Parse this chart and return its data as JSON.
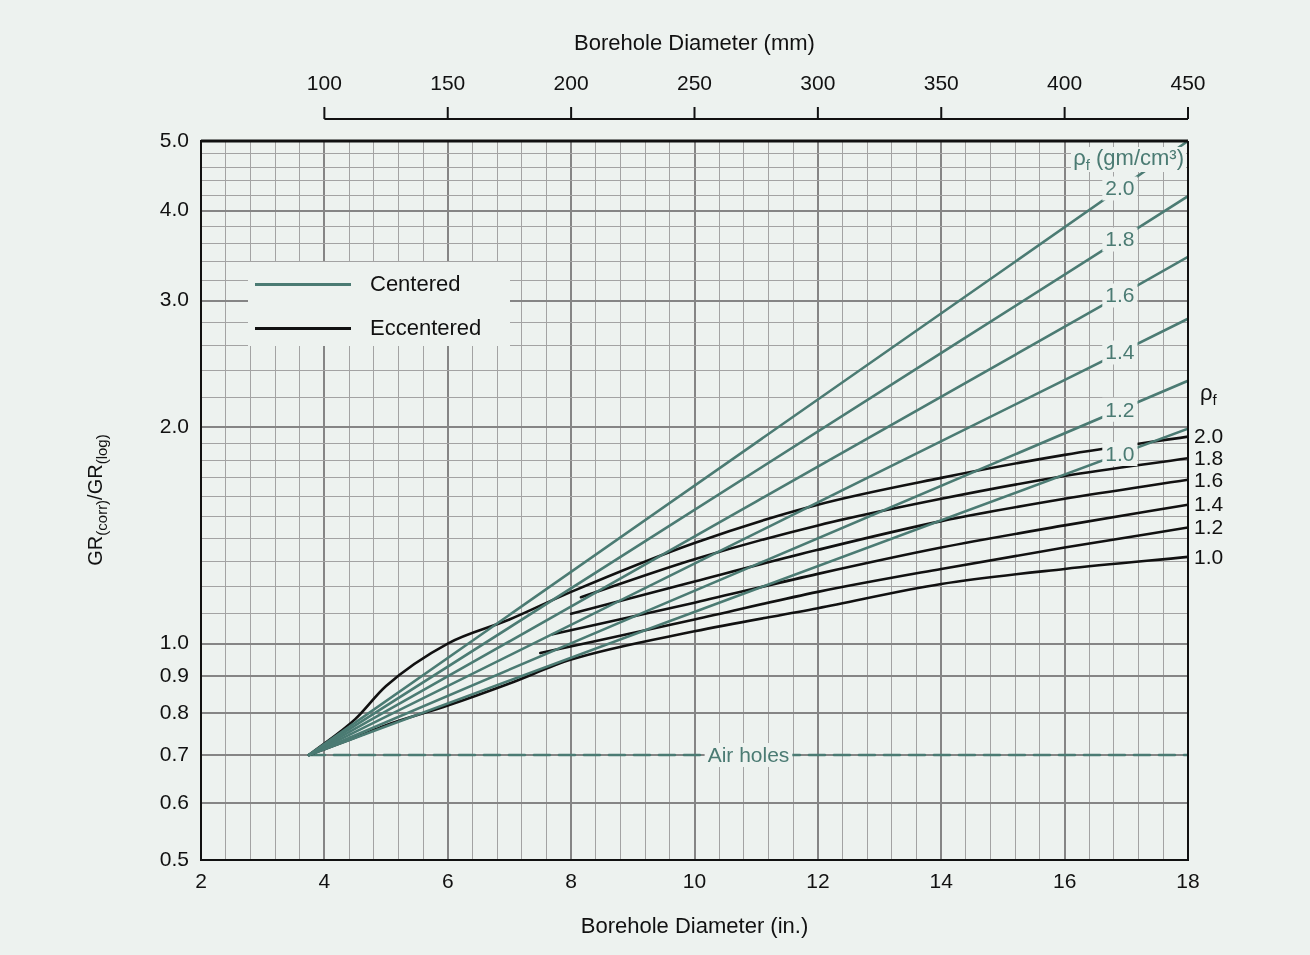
{
  "chart_data": {
    "type": "line",
    "xlabel": "Borehole Diameter (in.)",
    "x2label": "Borehole Diameter (mm)",
    "ylabel": "GR$_{(corr)}$/GR$_{(log)}$",
    "xlim": [
      2,
      18
    ],
    "xticks": [
      2,
      {
        "value": 2.4,
        "label": null
      },
      {
        "value": 2.8,
        "label": null
      },
      {
        "value": 3.2,
        "label": null
      },
      {
        "value": 3.6,
        "label": null
      },
      4,
      {
        "value": 4.4,
        "label": null
      },
      {
        "value": 4.8,
        "label": null
      },
      {
        "value": 5.2,
        "label": null
      },
      {
        "value": 5.6,
        "label": null
      },
      6,
      {
        "value": 6.4,
        "label": null
      },
      {
        "value": 6.8,
        "label": null
      },
      {
        "value": 7.2,
        "label": null
      },
      {
        "value": 7.6,
        "label": null
      },
      8,
      {
        "value": 8.4,
        "label": null
      },
      {
        "value": 8.8,
        "label": null
      },
      {
        "value": 9.2,
        "label": null
      },
      {
        "value": 9.6,
        "label": null
      },
      10,
      {
        "value": 10.4,
        "label": null
      },
      {
        "value": 10.8,
        "label": null
      },
      {
        "value": 11.2,
        "label": null
      },
      {
        "value": 11.6,
        "label": null
      },
      12,
      {
        "value": 12.4,
        "label": null
      },
      {
        "value": 12.8,
        "label": null
      },
      {
        "value": 13.2,
        "label": null
      },
      {
        "value": 13.6,
        "label": null
      },
      14,
      {
        "value": 14.4,
        "label": null
      },
      {
        "value": 14.8,
        "label": null
      },
      {
        "value": 15.2,
        "label": null
      },
      {
        "value": 15.6,
        "label": null
      },
      16,
      {
        "value": 16.4,
        "label": null
      },
      {
        "value": 16.8,
        "label": null
      },
      {
        "value": 17.2,
        "label": null
      },
      {
        "value": 17.6,
        "label": null
      },
      18
    ],
    "x2lim": [
      50,
      450
    ],
    "x2ticks": [
      100,
      150,
      200,
      250,
      300,
      350,
      400,
      450
    ],
    "ylim": [
      0.5,
      5
    ],
    "log": "y",
    "yticks": [
      0.5,
      0.6,
      0.7,
      0.8,
      0.9,
      {
        "value": 1,
        "label": "1.0"
      },
      {
        "value": 1.1,
        "label": null
      },
      {
        "value": 1.2,
        "label": null
      },
      {
        "value": 1.3,
        "label": null
      },
      {
        "value": 1.4,
        "label": null
      },
      {
        "value": 1.5,
        "label": null
      },
      {
        "value": 1.6,
        "label": null
      },
      {
        "value": 1.7,
        "label": null
      },
      {
        "value": 1.8,
        "label": null
      },
      {
        "value": 1.9,
        "label": null
      },
      {
        "value": 2,
        "label": "2.0"
      },
      {
        "value": 2.2,
        "label": null
      },
      {
        "value": 2.4,
        "label": null
      },
      {
        "value": 2.6,
        "label": null
      },
      {
        "value": 2.8,
        "label": null
      },
      {
        "value": 3,
        "label": "3.0"
      },
      {
        "value": 3.2,
        "label": null
      },
      {
        "value": 3.4,
        "label": null
      },
      {
        "value": 3.6,
        "label": null
      },
      {
        "value": 3.8,
        "label": null
      },
      {
        "value": 4,
        "label": "4.0"
      },
      {
        "value": 4.2,
        "label": null
      },
      {
        "value": 4.4,
        "label": null
      },
      {
        "value": 4.6,
        "label": null
      },
      {
        "value": 4.8,
        "label": null
      },
      {
        "value": 5,
        "label": "5.0"
      }
    ],
    "grid": true,
    "marker": "none",
    "line_style": "solid",
    "annotations": [
      "Centered",
      "Eccentered",
      "ρ$_{f}$ (gm/cm³)",
      "ρ$_{f}$"
    ],
    "series": [
      {
        "name": "2.0",
        "color": "#4b7b73",
        "x": [
          3.75,
          18
        ],
        "values": [
          0.7,
          5.0
        ]
      },
      {
        "name": "1.8",
        "color": "#4b7b73",
        "x": [
          3.75,
          18
        ],
        "values": [
          0.7,
          4.19
        ]
      },
      {
        "name": "1.6",
        "color": "#4b7b73",
        "x": [
          3.75,
          18
        ],
        "values": [
          0.7,
          3.45
        ]
      },
      {
        "name": "1.4",
        "color": "#4b7b73",
        "x": [
          3.75,
          18
        ],
        "values": [
          0.7,
          2.83
        ]
      },
      {
        "name": "1.2",
        "color": "#4b7b73",
        "x": [
          3.75,
          18
        ],
        "values": [
          0.7,
          2.32
        ]
      },
      {
        "name": "1.0",
        "color": "#4b7b73",
        "x": [
          3.75,
          18
        ],
        "values": [
          0.7,
          1.99
        ]
      },
      {
        "name": "2.0",
        "color": "#111111",
        "x": [
          3.75,
          4.5,
          5,
          6,
          7,
          8,
          10,
          12,
          14,
          16,
          18
        ],
        "values": [
          0.7,
          0.785,
          0.873,
          1.0,
          1.08,
          1.18,
          1.38,
          1.56,
          1.7,
          1.83,
          1.94
        ]
      },
      {
        "name": "1.8",
        "color": "#111111",
        "x": [
          8.16,
          10,
          12,
          14,
          16,
          18
        ],
        "values": [
          1.16,
          1.31,
          1.46,
          1.59,
          1.71,
          1.81
        ]
      },
      {
        "name": "1.6",
        "color": "#111111",
        "x": [
          8.0,
          10,
          12,
          14,
          16,
          18
        ],
        "values": [
          1.1,
          1.22,
          1.35,
          1.48,
          1.59,
          1.69
        ]
      },
      {
        "name": "1.4",
        "color": "#111111",
        "x": [
          7.7,
          10,
          12,
          14,
          16,
          18
        ],
        "values": [
          1.03,
          1.14,
          1.25,
          1.36,
          1.46,
          1.56
        ]
      },
      {
        "name": "1.2",
        "color": "#111111",
        "x": [
          7.5,
          10,
          12,
          14,
          16,
          18
        ],
        "values": [
          0.97,
          1.08,
          1.18,
          1.27,
          1.36,
          1.45
        ]
      },
      {
        "name": "1.0",
        "color": "#111111",
        "x": [
          3.75,
          4.5,
          5,
          6,
          7,
          8,
          10,
          12,
          14,
          16,
          18
        ],
        "values": [
          0.7,
          0.74,
          0.77,
          0.82,
          0.88,
          0.95,
          1.04,
          1.12,
          1.21,
          1.27,
          1.32
        ]
      },
      {
        "name": "Air holes",
        "color": "#4b7b73",
        "line_style": "dashed",
        "x": [
          3.75,
          18
        ],
        "values": [
          0.7,
          0.7
        ]
      }
    ]
  }
}
